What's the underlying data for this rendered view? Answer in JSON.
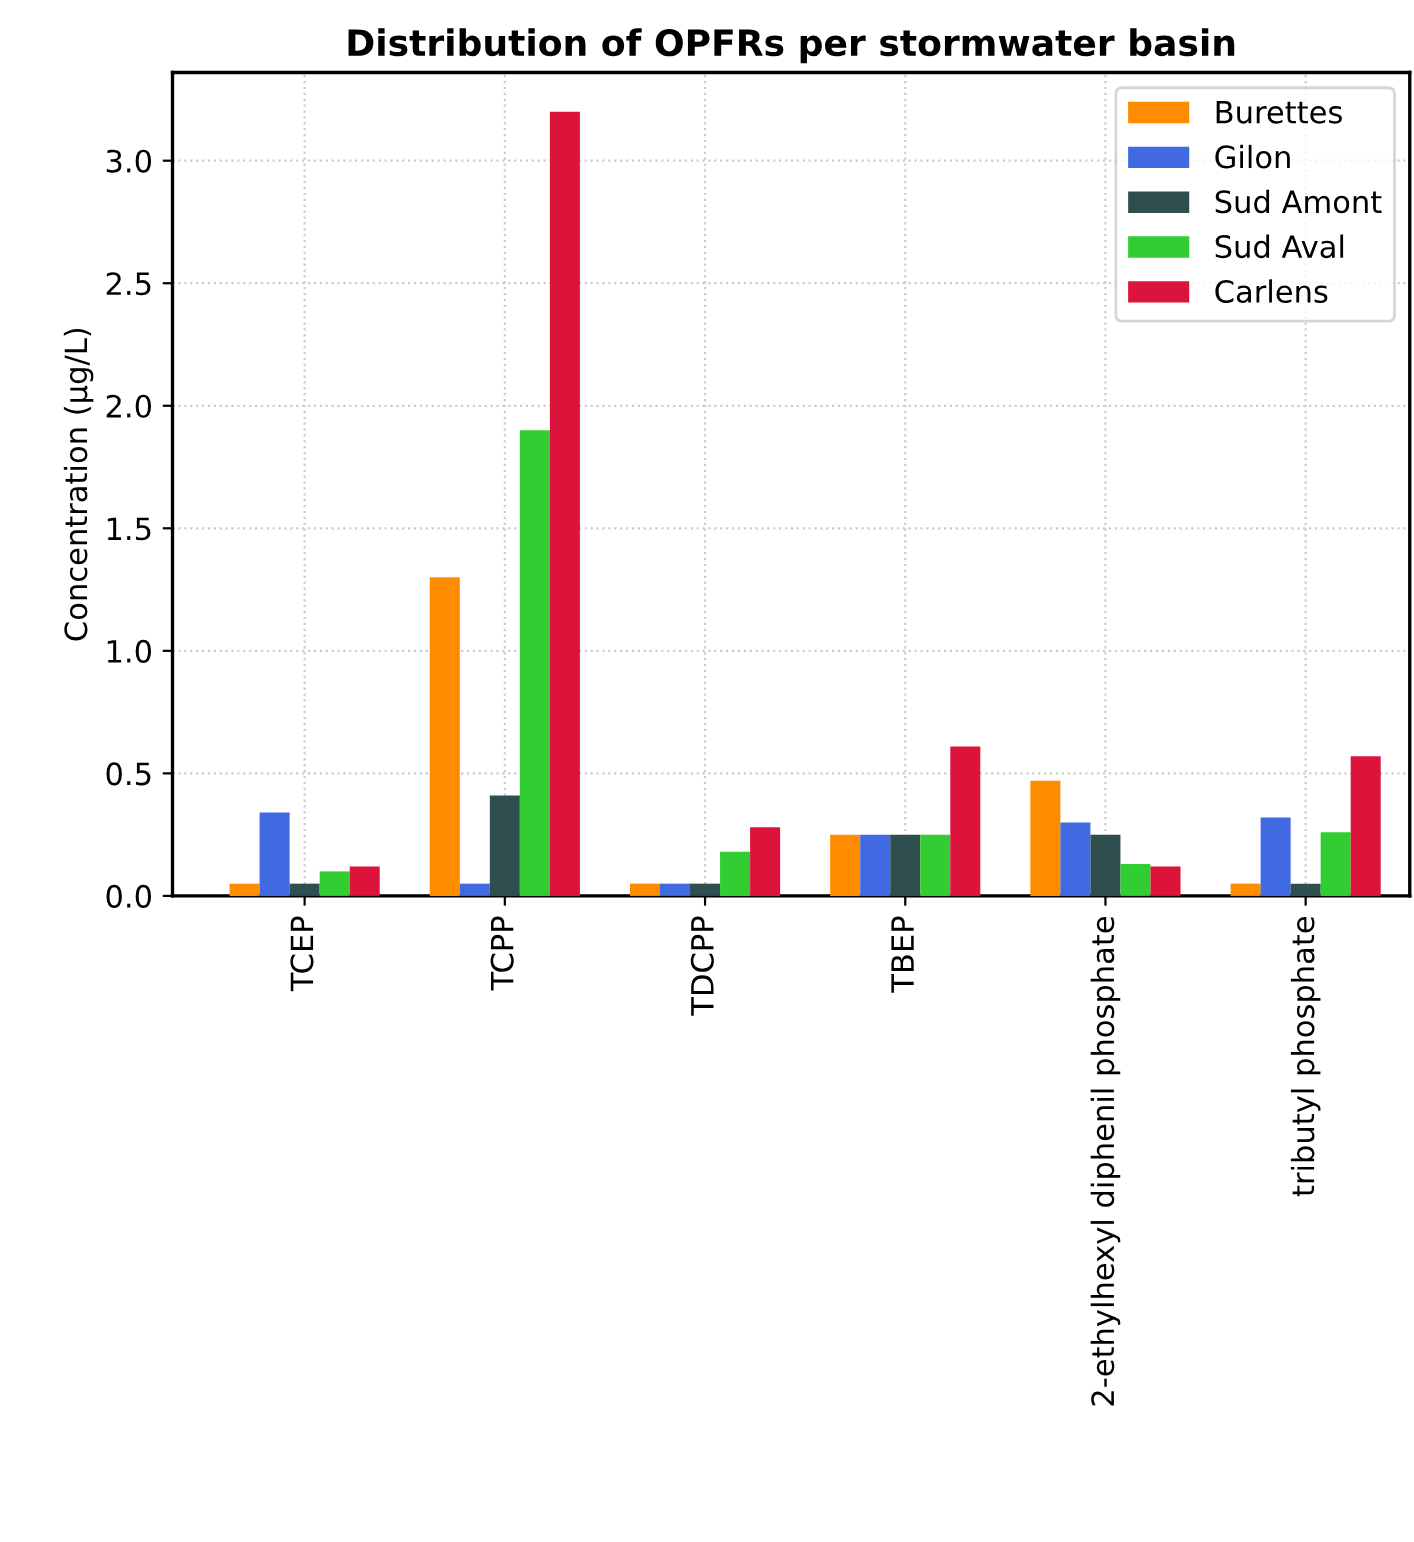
{
  "chart_data": {
    "type": "bar",
    "title": "Distribution of OPFRs per stormwater basin",
    "ylabel": "Concentration (µg/L)",
    "categories": [
      "TCEP",
      "TCPP",
      "TDCPP",
      "TBEP",
      "2-ethylhexyl diphenil phosphate",
      "tributyl phosphate"
    ],
    "series": [
      {
        "name": "Burettes",
        "color": "#ff8c00",
        "values": [
          0.05,
          1.3,
          0.05,
          0.25,
          0.47,
          0.05
        ]
      },
      {
        "name": "Gilon",
        "color": "#4169e1",
        "values": [
          0.34,
          0.05,
          0.05,
          0.25,
          0.3,
          0.32
        ]
      },
      {
        "name": "Sud Amont",
        "color": "#2f4f4f",
        "values": [
          0.05,
          0.41,
          0.05,
          0.25,
          0.25,
          0.05
        ]
      },
      {
        "name": "Sud Aval",
        "color": "#32cd32",
        "values": [
          0.1,
          1.9,
          0.18,
          0.25,
          0.13,
          0.26
        ]
      },
      {
        "name": "Carlens",
        "color": "#dc143c",
        "values": [
          0.12,
          3.2,
          0.28,
          0.61,
          0.12,
          0.57
        ]
      }
    ],
    "ylim": [
      0,
      3.36
    ],
    "yticks": [
      {
        "value": 0,
        "label": "0.0"
      },
      {
        "value": 0.5,
        "label": "0.5"
      },
      {
        "value": 1,
        "label": "1.0"
      },
      {
        "value": 1.5,
        "label": "1.5"
      },
      {
        "value": 2,
        "label": "2.0"
      },
      {
        "value": 2.5,
        "label": "2.5"
      },
      {
        "value": 3,
        "label": "3.0"
      }
    ],
    "grid": true,
    "legend": "top right"
  }
}
